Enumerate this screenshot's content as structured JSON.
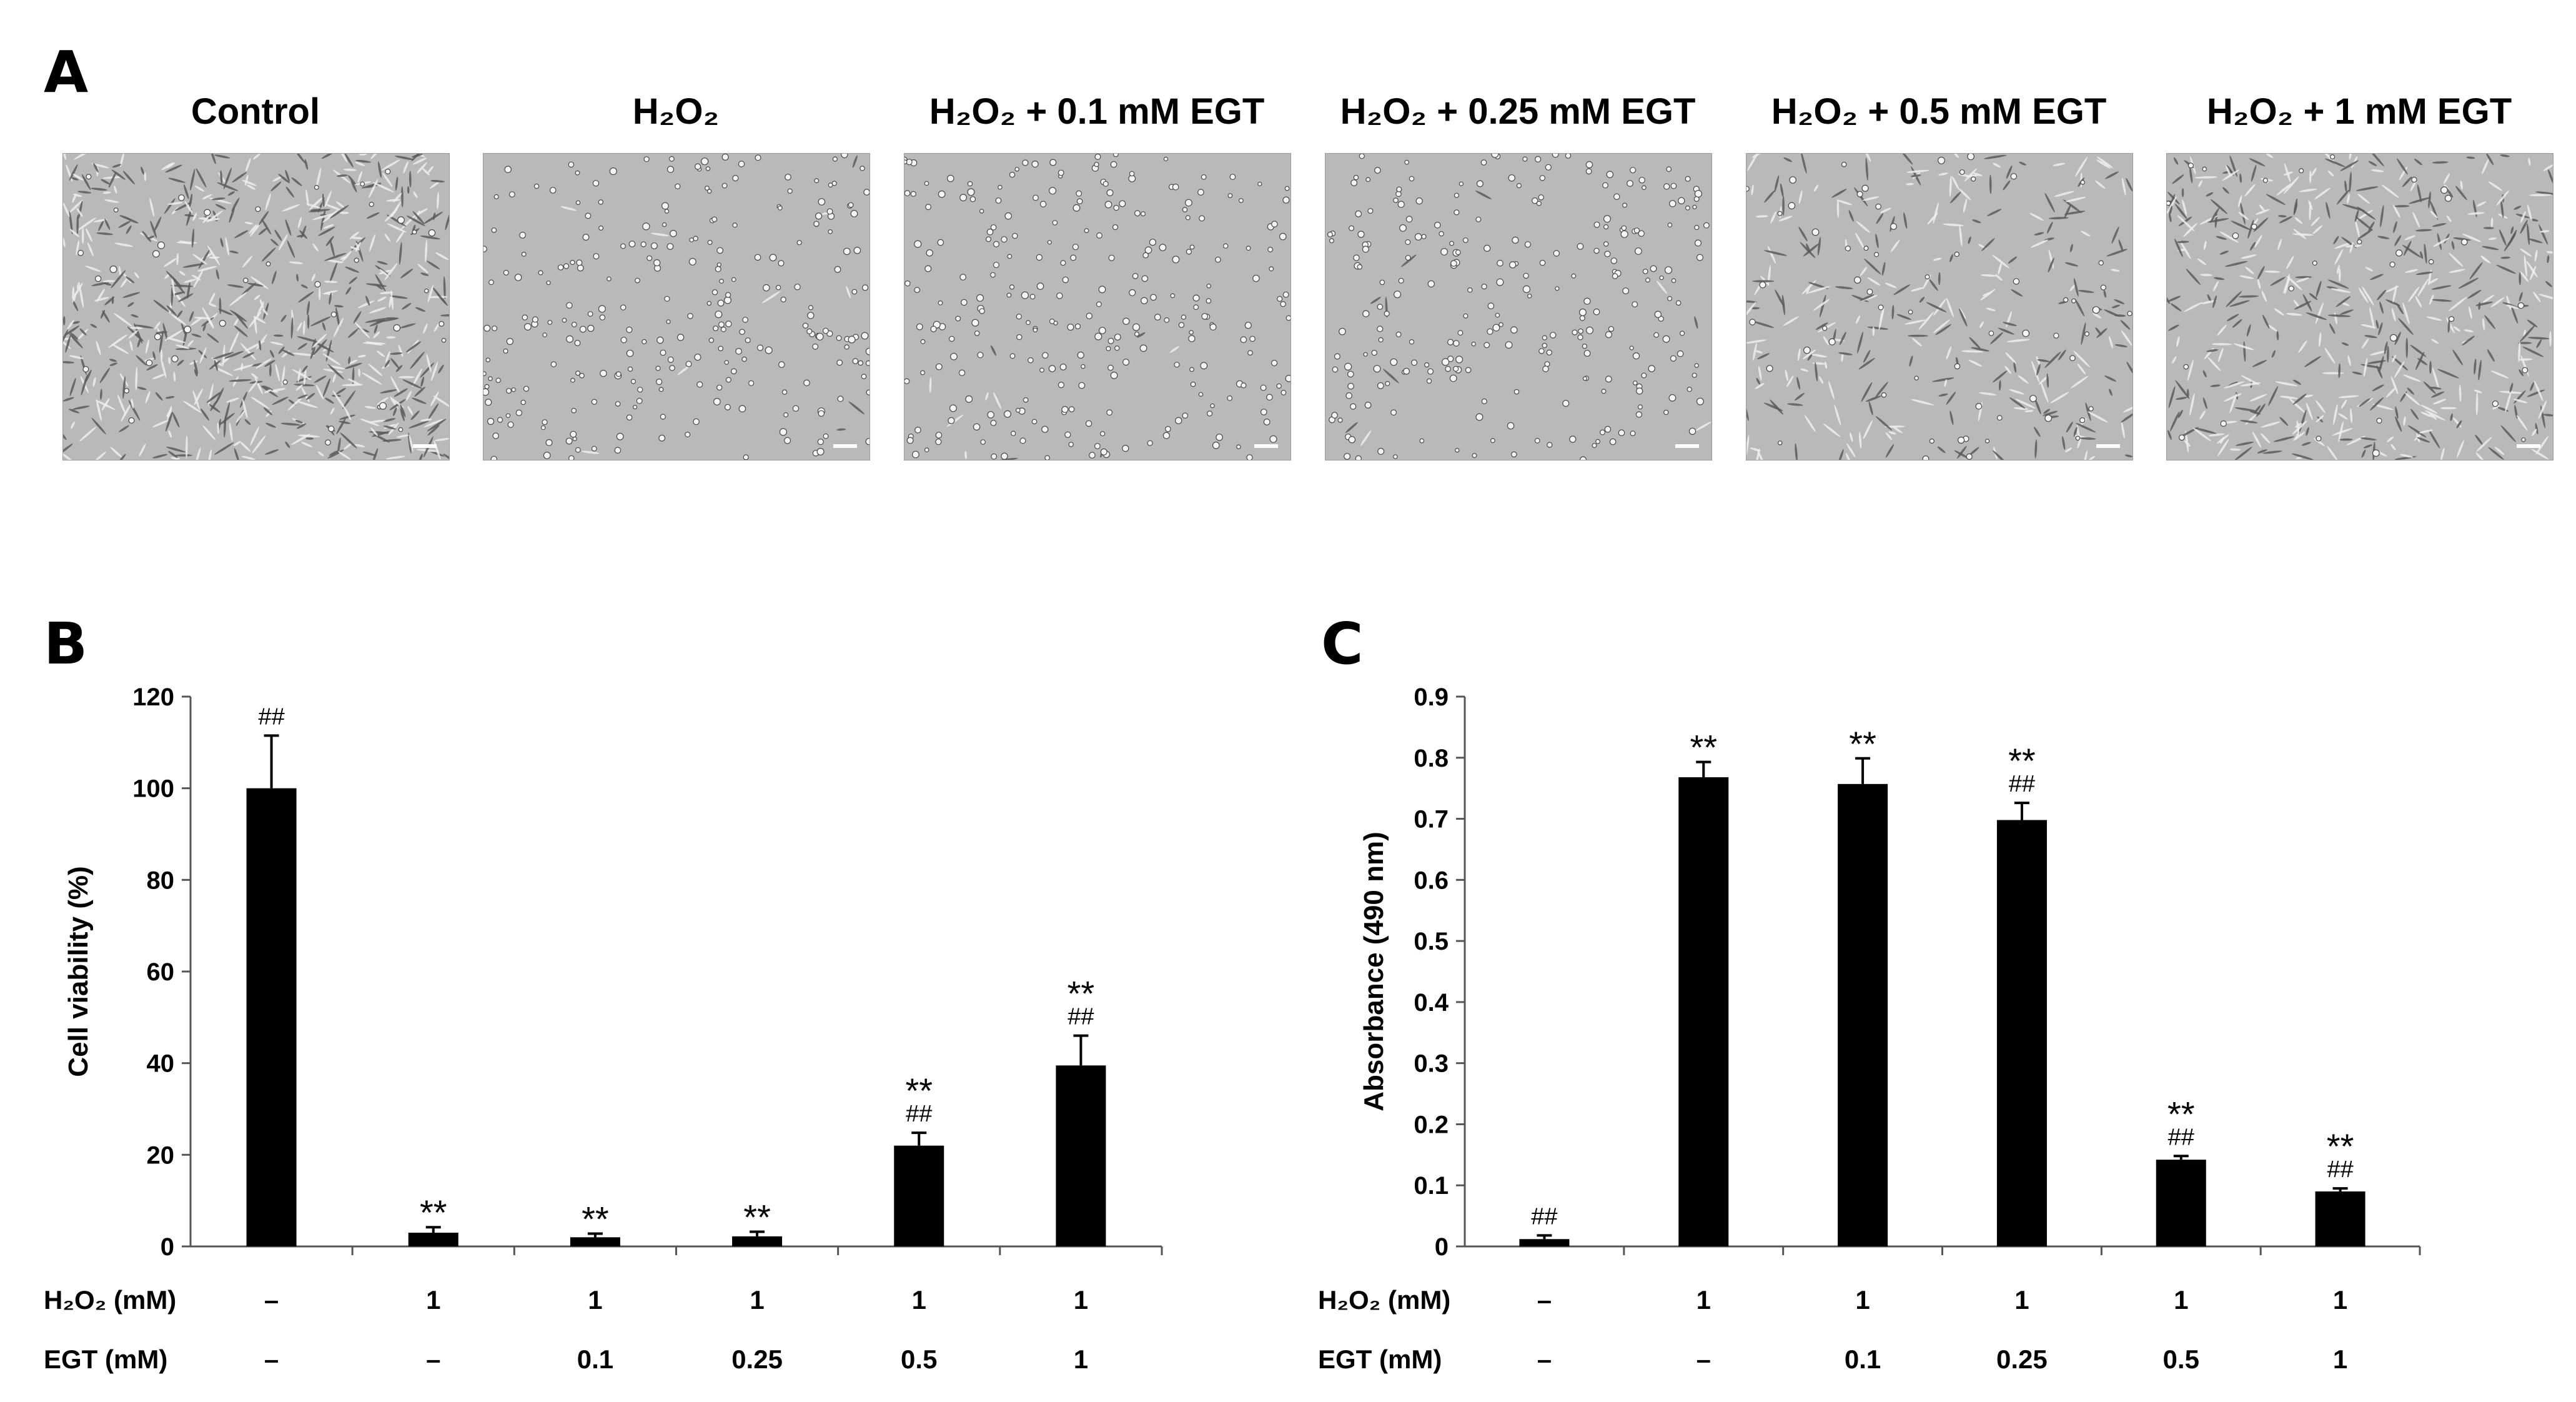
{
  "panel_letters": {
    "a": "A",
    "b": "B",
    "c": "C"
  },
  "panel_a": {
    "images": [
      {
        "title": "Control",
        "scale_bar": true,
        "cell_type": "dense-spindle"
      },
      {
        "title": "H₂O₂",
        "scale_bar": true,
        "cell_type": "rounded-sparse"
      },
      {
        "title": "H₂O₂ + 0.1 mM EGT",
        "scale_bar": true,
        "cell_type": "rounded-sparse"
      },
      {
        "title": "H₂O₂ + 0.25 mM EGT",
        "scale_bar": true,
        "cell_type": "rounded-sparse"
      },
      {
        "title": "H₂O₂ + 0.5 mM EGT",
        "scale_bar": true,
        "cell_type": "mixed-spindle"
      },
      {
        "title": "H₂O₂ + 1 mM EGT",
        "scale_bar": true,
        "cell_type": "spindle"
      }
    ]
  },
  "chart_data": [
    {
      "panel": "B",
      "type": "bar",
      "ylabel": "Cell viability (%)",
      "ylim": [
        0,
        120
      ],
      "yticks": [
        0,
        20,
        40,
        60,
        80,
        100,
        120
      ],
      "bar_color": "#000000",
      "grid": false,
      "values": [
        100,
        3,
        2,
        2.2,
        22,
        39.5
      ],
      "errors": [
        11.5,
        1.2,
        0.8,
        1.0,
        2.8,
        6.5
      ],
      "annotations": [
        [
          "##"
        ],
        [
          "**"
        ],
        [
          "**"
        ],
        [
          "**"
        ],
        [
          "**",
          "##"
        ],
        [
          "**",
          "##"
        ]
      ],
      "row_labels": [
        "H₂O₂ (mM)",
        "EGT  (mM)"
      ],
      "h2o2": [
        "–",
        "1",
        "1",
        "1",
        "1",
        "1"
      ],
      "egt": [
        "–",
        "–",
        "0.1",
        "0.25",
        "0.5",
        "1"
      ]
    },
    {
      "panel": "C",
      "type": "bar",
      "ylabel": "Absorbance (490 nm)",
      "ylim": [
        0,
        0.9
      ],
      "yticks": [
        0,
        0.1,
        0.2,
        0.3,
        0.4,
        0.5,
        0.6,
        0.7,
        0.8,
        0.9
      ],
      "bar_color": "#000000",
      "grid": false,
      "values": [
        0.012,
        0.768,
        0.757,
        0.698,
        0.142,
        0.09
      ],
      "errors": [
        0.006,
        0.025,
        0.042,
        0.028,
        0.006,
        0.005
      ],
      "annotations": [
        [
          "##"
        ],
        [
          "**"
        ],
        [
          "**"
        ],
        [
          "**",
          "##"
        ],
        [
          "**",
          "##"
        ],
        [
          "**",
          "##"
        ]
      ],
      "row_labels": [
        "H₂O₂ (mM)",
        "EGT  (mM)"
      ],
      "h2o2": [
        "–",
        "1",
        "1",
        "1",
        "1",
        "1"
      ],
      "egt": [
        "–",
        "–",
        "0.1",
        "0.25",
        "0.5",
        "1"
      ]
    }
  ]
}
